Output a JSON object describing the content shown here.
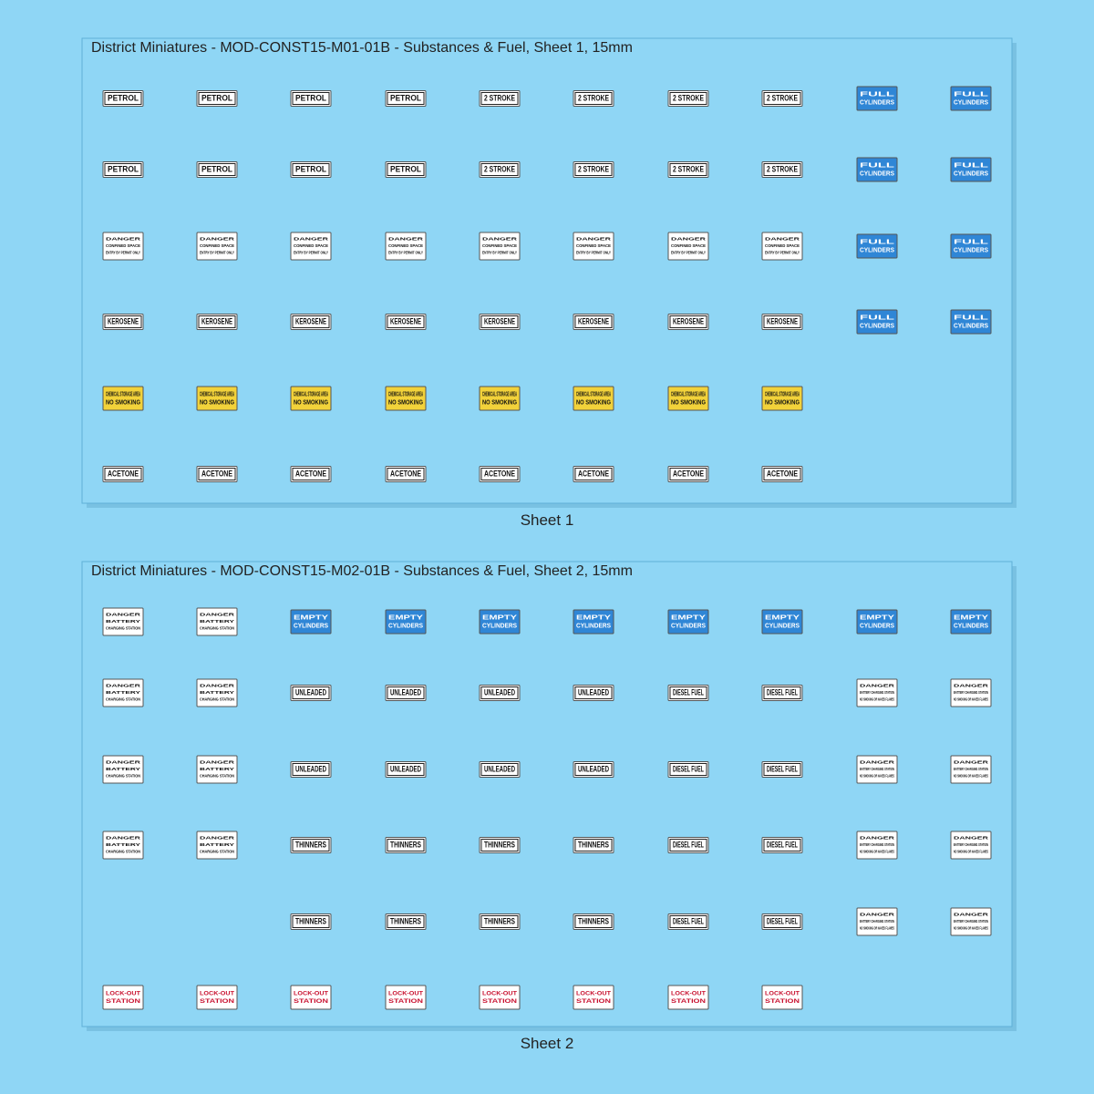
{
  "sheets": [
    {
      "title": "District Miniatures - MOD-CONST15-M01-01B - Substances & Fuel, Sheet 1, 15mm",
      "caption": "Sheet 1",
      "grid": [
        [
          {
            "lines": [
              "PETROL"
            ]
          },
          {
            "lines": [
              "PETROL"
            ]
          },
          {
            "lines": [
              "PETROL"
            ]
          },
          {
            "lines": [
              "PETROL"
            ]
          },
          {
            "lines": [
              "2 STROKE"
            ]
          },
          {
            "lines": [
              "2 STROKE"
            ]
          },
          {
            "lines": [
              "2 STROKE"
            ]
          },
          {
            "lines": [
              "2 STROKE"
            ]
          },
          {
            "lines": [
              "FULL",
              "CYLINDERS"
            ],
            "bg": "#2f86d6",
            "ink": "#ffffff"
          },
          {
            "lines": [
              "FULL",
              "CYLINDERS"
            ],
            "bg": "#2f86d6",
            "ink": "#ffffff"
          }
        ],
        [
          {
            "lines": [
              "PETROL"
            ]
          },
          {
            "lines": [
              "PETROL"
            ]
          },
          {
            "lines": [
              "PETROL"
            ]
          },
          {
            "lines": [
              "PETROL"
            ]
          },
          {
            "lines": [
              "2 STROKE"
            ]
          },
          {
            "lines": [
              "2 STROKE"
            ]
          },
          {
            "lines": [
              "2 STROKE"
            ]
          },
          {
            "lines": [
              "2 STROKE"
            ]
          },
          {
            "lines": [
              "FULL",
              "CYLINDERS"
            ],
            "bg": "#2f86d6",
            "ink": "#ffffff"
          },
          {
            "lines": [
              "FULL",
              "CYLINDERS"
            ],
            "bg": "#2f86d6",
            "ink": "#ffffff"
          }
        ],
        [
          {
            "lines": [
              "DANGER",
              "CONFINED SPACE",
              "ENTRY BY PERMIT ONLY"
            ]
          },
          {
            "lines": [
              "DANGER",
              "CONFINED SPACE",
              "ENTRY BY PERMIT ONLY"
            ]
          },
          {
            "lines": [
              "DANGER",
              "CONFINED SPACE",
              "ENTRY BY PERMIT ONLY"
            ]
          },
          {
            "lines": [
              "DANGER",
              "CONFINED SPACE",
              "ENTRY BY PERMIT ONLY"
            ]
          },
          {
            "lines": [
              "DANGER",
              "CONFINED SPACE",
              "ENTRY BY PERMIT ONLY"
            ]
          },
          {
            "lines": [
              "DANGER",
              "CONFINED SPACE",
              "ENTRY BY PERMIT ONLY"
            ]
          },
          {
            "lines": [
              "DANGER",
              "CONFINED SPACE",
              "ENTRY BY PERMIT ONLY"
            ]
          },
          {
            "lines": [
              "DANGER",
              "CONFINED SPACE",
              "ENTRY BY PERMIT ONLY"
            ]
          },
          {
            "lines": [
              "FULL",
              "CYLINDERS"
            ],
            "bg": "#2f86d6",
            "ink": "#ffffff"
          },
          {
            "lines": [
              "FULL",
              "CYLINDERS"
            ],
            "bg": "#2f86d6",
            "ink": "#ffffff"
          }
        ],
        [
          {
            "lines": [
              "KEROSENE"
            ]
          },
          {
            "lines": [
              "KEROSENE"
            ]
          },
          {
            "lines": [
              "KEROSENE"
            ]
          },
          {
            "lines": [
              "KEROSENE"
            ]
          },
          {
            "lines": [
              "KEROSENE"
            ]
          },
          {
            "lines": [
              "KEROSENE"
            ]
          },
          {
            "lines": [
              "KEROSENE"
            ]
          },
          {
            "lines": [
              "KEROSENE"
            ]
          },
          {
            "lines": [
              "FULL",
              "CYLINDERS"
            ],
            "bg": "#2f86d6",
            "ink": "#ffffff"
          },
          {
            "lines": [
              "FULL",
              "CYLINDERS"
            ],
            "bg": "#2f86d6",
            "ink": "#ffffff"
          }
        ],
        [
          {
            "lines": [
              "CHEMICAL STORAGE AREA",
              "NO SMOKING"
            ],
            "bg": "#f2d23a"
          },
          {
            "lines": [
              "CHEMICAL STORAGE AREA",
              "NO SMOKING"
            ],
            "bg": "#f2d23a"
          },
          {
            "lines": [
              "CHEMICAL STORAGE AREA",
              "NO SMOKING"
            ],
            "bg": "#f2d23a"
          },
          {
            "lines": [
              "CHEMICAL STORAGE AREA",
              "NO SMOKING"
            ],
            "bg": "#f2d23a"
          },
          {
            "lines": [
              "CHEMICAL STORAGE AREA",
              "NO SMOKING"
            ],
            "bg": "#f2d23a"
          },
          {
            "lines": [
              "CHEMICAL STORAGE AREA",
              "NO SMOKING"
            ],
            "bg": "#f2d23a"
          },
          {
            "lines": [
              "CHEMICAL STORAGE AREA",
              "NO SMOKING"
            ],
            "bg": "#f2d23a"
          },
          {
            "lines": [
              "CHEMICAL STORAGE AREA",
              "NO SMOKING"
            ],
            "bg": "#f2d23a"
          },
          null,
          null
        ],
        [
          {
            "lines": [
              "ACETONE"
            ]
          },
          {
            "lines": [
              "ACETONE"
            ]
          },
          {
            "lines": [
              "ACETONE"
            ]
          },
          {
            "lines": [
              "ACETONE"
            ]
          },
          {
            "lines": [
              "ACETONE"
            ]
          },
          {
            "lines": [
              "ACETONE"
            ]
          },
          {
            "lines": [
              "ACETONE"
            ]
          },
          {
            "lines": [
              "ACETONE"
            ]
          },
          null,
          null
        ]
      ]
    },
    {
      "title": "District Miniatures - MOD-CONST15-M02-01B - Substances & Fuel, Sheet 2, 15mm",
      "caption": "Sheet 2",
      "grid": [
        [
          {
            "lines": [
              "DANGER",
              "BATTERY",
              "CHARGING STATION"
            ]
          },
          {
            "lines": [
              "DANGER",
              "BATTERY",
              "CHARGING STATION"
            ]
          },
          {
            "lines": [
              "EMPTY",
              "CYLINDERS"
            ],
            "bg": "#2f86d6",
            "ink": "#ffffff"
          },
          {
            "lines": [
              "EMPTY",
              "CYLINDERS"
            ],
            "bg": "#2f86d6",
            "ink": "#ffffff"
          },
          {
            "lines": [
              "EMPTY",
              "CYLINDERS"
            ],
            "bg": "#2f86d6",
            "ink": "#ffffff"
          },
          {
            "lines": [
              "EMPTY",
              "CYLINDERS"
            ],
            "bg": "#2f86d6",
            "ink": "#ffffff"
          },
          {
            "lines": [
              "EMPTY",
              "CYLINDERS"
            ],
            "bg": "#2f86d6",
            "ink": "#ffffff"
          },
          {
            "lines": [
              "EMPTY",
              "CYLINDERS"
            ],
            "bg": "#2f86d6",
            "ink": "#ffffff"
          },
          {
            "lines": [
              "EMPTY",
              "CYLINDERS"
            ],
            "bg": "#2f86d6",
            "ink": "#ffffff"
          },
          {
            "lines": [
              "EMPTY",
              "CYLINDERS"
            ],
            "bg": "#2f86d6",
            "ink": "#ffffff"
          }
        ],
        [
          {
            "lines": [
              "DANGER",
              "BATTERY",
              "CHARGING STATION"
            ]
          },
          {
            "lines": [
              "DANGER",
              "BATTERY",
              "CHARGING STATION"
            ]
          },
          {
            "lines": [
              "UNLEADED"
            ]
          },
          {
            "lines": [
              "UNLEADED"
            ]
          },
          {
            "lines": [
              "UNLEADED"
            ]
          },
          {
            "lines": [
              "UNLEADED"
            ]
          },
          {
            "lines": [
              "DIESEL FUEL"
            ]
          },
          {
            "lines": [
              "DIESEL FUEL"
            ]
          },
          {
            "lines": [
              "DANGER",
              "BATTERY CHARGING STATION",
              "NO SMOKING OR NAKED FLAMES"
            ]
          },
          {
            "lines": [
              "DANGER",
              "BATTERY CHARGING STATION",
              "NO SMOKING OR NAKED FLAMES"
            ]
          }
        ],
        [
          {
            "lines": [
              "DANGER",
              "BATTERY",
              "CHARGING STATION"
            ]
          },
          {
            "lines": [
              "DANGER",
              "BATTERY",
              "CHARGING STATION"
            ]
          },
          {
            "lines": [
              "UNLEADED"
            ]
          },
          {
            "lines": [
              "UNLEADED"
            ]
          },
          {
            "lines": [
              "UNLEADED"
            ]
          },
          {
            "lines": [
              "UNLEADED"
            ]
          },
          {
            "lines": [
              "DIESEL FUEL"
            ]
          },
          {
            "lines": [
              "DIESEL FUEL"
            ]
          },
          {
            "lines": [
              "DANGER",
              "BATTERY CHARGING STATION",
              "NO SMOKING OR NAKED FLAMES"
            ]
          },
          {
            "lines": [
              "DANGER",
              "BATTERY CHARGING STATION",
              "NO SMOKING OR NAKED FLAMES"
            ]
          }
        ],
        [
          {
            "lines": [
              "DANGER",
              "BATTERY",
              "CHARGING STATION"
            ]
          },
          {
            "lines": [
              "DANGER",
              "BATTERY",
              "CHARGING STATION"
            ]
          },
          {
            "lines": [
              "THINNERS"
            ]
          },
          {
            "lines": [
              "THINNERS"
            ]
          },
          {
            "lines": [
              "THINNERS"
            ]
          },
          {
            "lines": [
              "THINNERS"
            ]
          },
          {
            "lines": [
              "DIESEL FUEL"
            ]
          },
          {
            "lines": [
              "DIESEL FUEL"
            ]
          },
          {
            "lines": [
              "DANGER",
              "BATTERY CHARGING STATION",
              "NO SMOKING OR NAKED FLAMES"
            ]
          },
          {
            "lines": [
              "DANGER",
              "BATTERY CHARGING STATION",
              "NO SMOKING OR NAKED FLAMES"
            ]
          }
        ],
        [
          null,
          null,
          {
            "lines": [
              "THINNERS"
            ]
          },
          {
            "lines": [
              "THINNERS"
            ]
          },
          {
            "lines": [
              "THINNERS"
            ]
          },
          {
            "lines": [
              "THINNERS"
            ]
          },
          {
            "lines": [
              "DIESEL FUEL"
            ]
          },
          {
            "lines": [
              "DIESEL FUEL"
            ]
          },
          {
            "lines": [
              "DANGER",
              "BATTERY CHARGING STATION",
              "NO SMOKING OR NAKED FLAMES"
            ]
          },
          {
            "lines": [
              "DANGER",
              "BATTERY CHARGING STATION",
              "NO SMOKING OR NAKED FLAMES"
            ]
          }
        ],
        [
          {
            "lines": [
              "LOCK-OUT",
              "STATION"
            ],
            "ink": "#c8102e"
          },
          {
            "lines": [
              "LOCK-OUT",
              "STATION"
            ],
            "ink": "#c8102e"
          },
          {
            "lines": [
              "LOCK-OUT",
              "STATION"
            ],
            "ink": "#c8102e"
          },
          {
            "lines": [
              "LOCK-OUT",
              "STATION"
            ],
            "ink": "#c8102e"
          },
          {
            "lines": [
              "LOCK-OUT",
              "STATION"
            ],
            "ink": "#c8102e"
          },
          {
            "lines": [
              "LOCK-OUT",
              "STATION"
            ],
            "ink": "#c8102e"
          },
          {
            "lines": [
              "LOCK-OUT",
              "STATION"
            ],
            "ink": "#c8102e"
          },
          {
            "lines": [
              "LOCK-OUT",
              "STATION"
            ],
            "ink": "#c8102e"
          },
          null,
          null
        ]
      ]
    }
  ]
}
